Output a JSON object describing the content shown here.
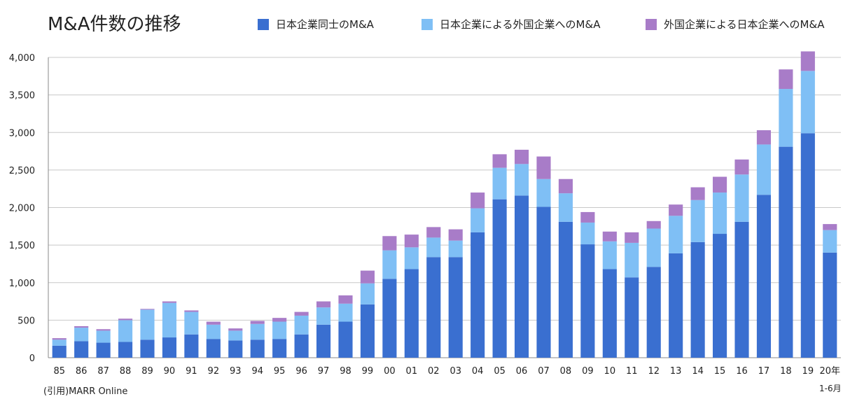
{
  "chart_data": {
    "type": "bar",
    "stacked": true,
    "title": "M&A件数の推移",
    "categories": [
      "85",
      "86",
      "87",
      "88",
      "89",
      "90",
      "91",
      "92",
      "93",
      "94",
      "95",
      "96",
      "97",
      "98",
      "99",
      "00",
      "01",
      "02",
      "03",
      "04",
      "05",
      "06",
      "07",
      "08",
      "09",
      "10",
      "11",
      "12",
      "13",
      "14",
      "15",
      "16",
      "17",
      "18",
      "19",
      "20年"
    ],
    "series": [
      {
        "name": "日本企業同士のM&A",
        "color": "#3a6fd0",
        "values": [
          160,
          220,
          200,
          210,
          240,
          270,
          310,
          250,
          230,
          240,
          250,
          310,
          440,
          480,
          710,
          1050,
          1180,
          1340,
          1340,
          1670,
          2110,
          2160,
          2010,
          1810,
          1510,
          1180,
          1070,
          1210,
          1390,
          1540,
          1650,
          1810,
          2170,
          2810,
          2990,
          1400
        ]
      },
      {
        "name": "日本企業による外国企業へのM&A",
        "color": "#7fbff5",
        "values": [
          80,
          180,
          160,
          290,
          400,
          460,
          300,
          190,
          130,
          210,
          230,
          250,
          230,
          240,
          280,
          380,
          290,
          260,
          220,
          320,
          420,
          420,
          370,
          380,
          290,
          370,
          460,
          510,
          500,
          560,
          550,
          630,
          670,
          770,
          830,
          300
        ]
      },
      {
        "name": "外国企業による日本企業へのM&A",
        "color": "#a87cc8",
        "values": [
          20,
          20,
          20,
          20,
          10,
          20,
          20,
          40,
          30,
          40,
          50,
          50,
          80,
          110,
          170,
          190,
          170,
          140,
          150,
          210,
          180,
          190,
          300,
          190,
          140,
          130,
          140,
          100,
          150,
          170,
          210,
          200,
          190,
          260,
          260,
          80
        ]
      }
    ],
    "ylim": [
      0,
      4000
    ],
    "yticks": [
      0,
      500,
      1000,
      1500,
      2000,
      2500,
      3000,
      3500,
      4000
    ],
    "ytick_labels": [
      "0",
      "500",
      "1,000",
      "1,500",
      "2,000",
      "2,500",
      "3,000",
      "3,500",
      "4,000"
    ],
    "grid": true,
    "legend_position": "top-right"
  },
  "last_period_note": "1-6月",
  "source": "(引用)MARR Online"
}
